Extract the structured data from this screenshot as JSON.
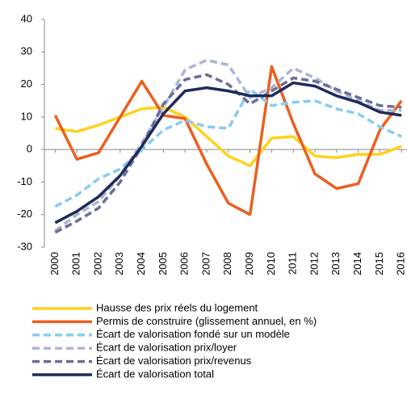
{
  "chart_data": {
    "type": "line",
    "categories": [
      "2000",
      "2001",
      "2002",
      "2003",
      "2004",
      "2005",
      "2006",
      "2007",
      "2008",
      "2009",
      "2010",
      "2011",
      "2012",
      "2013",
      "2014",
      "2015",
      "2016"
    ],
    "ylim": [
      -30,
      40
    ],
    "yticks": [
      -30,
      -20,
      -10,
      0,
      10,
      20,
      30,
      40
    ],
    "series": [
      {
        "name": "Hausse des prix réels du logement",
        "color": "#ffd21f",
        "dashed": false,
        "values": [
          6.5,
          5.5,
          7.5,
          10,
          12.5,
          13,
          10,
          4,
          -2,
          -5,
          3.5,
          4,
          -2,
          -2.5,
          -1.5,
          -1.5,
          1
        ]
      },
      {
        "name": "Permis de construire (glissement annuel, en %)",
        "color": "#ec5f1f",
        "dashed": false,
        "values": [
          10.5,
          -3,
          -1,
          10,
          21,
          10.5,
          9.5,
          -4.5,
          -16.5,
          -20,
          25.5,
          8,
          -7.5,
          -12,
          -10.5,
          6,
          15
        ]
      },
      {
        "name": "Écart de valorisation fondé sur un modèle",
        "color": "#86cdf2",
        "dashed": true,
        "values": [
          -17.5,
          -14,
          -9,
          -6,
          0,
          6,
          9,
          7,
          6.5,
          18.5,
          13.5,
          14.5,
          15,
          12.5,
          11,
          7,
          4
        ]
      },
      {
        "name": "Écart de valorisation prix/loyer",
        "color": "#aab6d6",
        "dashed": true,
        "values": [
          -25,
          -20,
          -16,
          -8,
          2,
          13,
          24.5,
          27.5,
          26,
          16,
          19,
          25,
          22,
          18,
          15,
          12,
          12
        ]
      },
      {
        "name": "Écart de valorisation prix/revenus",
        "color": "#6a6e99",
        "dashed": true,
        "values": [
          -25.5,
          -22,
          -18,
          -10,
          1,
          14,
          21.5,
          23,
          20,
          14,
          18,
          22,
          21,
          18.5,
          16,
          13.5,
          13
        ]
      },
      {
        "name": "Écart de valorisation total",
        "color": "#1e2a5a",
        "dashed": false,
        "values": [
          -22.5,
          -19,
          -14.5,
          -8,
          1,
          11,
          18,
          19,
          18,
          16.5,
          16.5,
          20.5,
          19.5,
          16.5,
          14.5,
          11.5,
          10.5
        ]
      }
    ]
  }
}
